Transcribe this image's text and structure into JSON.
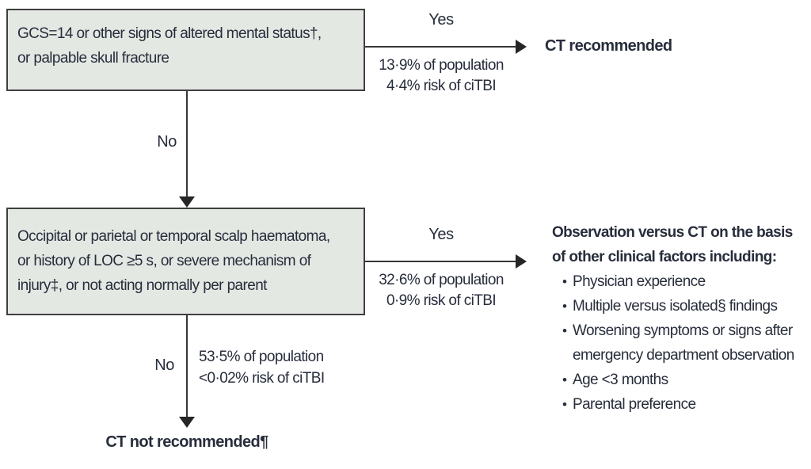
{
  "palette": {
    "box_fill": "#e4e8e3",
    "box_border": "#3f3f3f",
    "arrow_color": "#363636",
    "text_color": "#272d3b",
    "background": "#ffffff"
  },
  "node1": {
    "lines": [
      "GCS=14 or other signs of altered mental status†,",
      "or palpable skull fracture"
    ]
  },
  "branch1_yes": {
    "label": "Yes",
    "population": "13·9% of population",
    "risk": "4·4% risk of ciTBI",
    "outcome": "CT recommended"
  },
  "branch1_no": {
    "label": "No"
  },
  "node2": {
    "lines": [
      "Occipital or parietal or temporal scalp haematoma,",
      "or history of LOC ≥5 s, or severe mechanism of",
      "injury‡, or not acting normally per parent"
    ]
  },
  "branch2_yes": {
    "label": "Yes",
    "population": "32·6% of population",
    "risk": "0·9% risk of ciTBI"
  },
  "observation": {
    "heading_lines": [
      "Observation versus CT on the basis",
      "of other clinical factors including:"
    ],
    "bullet_glyph": "•",
    "bullets": [
      {
        "lines": [
          "Physician experience"
        ]
      },
      {
        "lines": [
          "Multiple versus isolated§ findings"
        ]
      },
      {
        "lines": [
          "Worsening symptoms or signs after",
          "emergency department observation"
        ]
      },
      {
        "lines": [
          "Age <3 months"
        ]
      },
      {
        "lines": [
          "Parental preference"
        ]
      }
    ]
  },
  "branch2_no": {
    "label": "No",
    "population": "53·5% of population",
    "risk": "<0·02% risk of ciTBI",
    "outcome": "CT not recommended¶"
  }
}
